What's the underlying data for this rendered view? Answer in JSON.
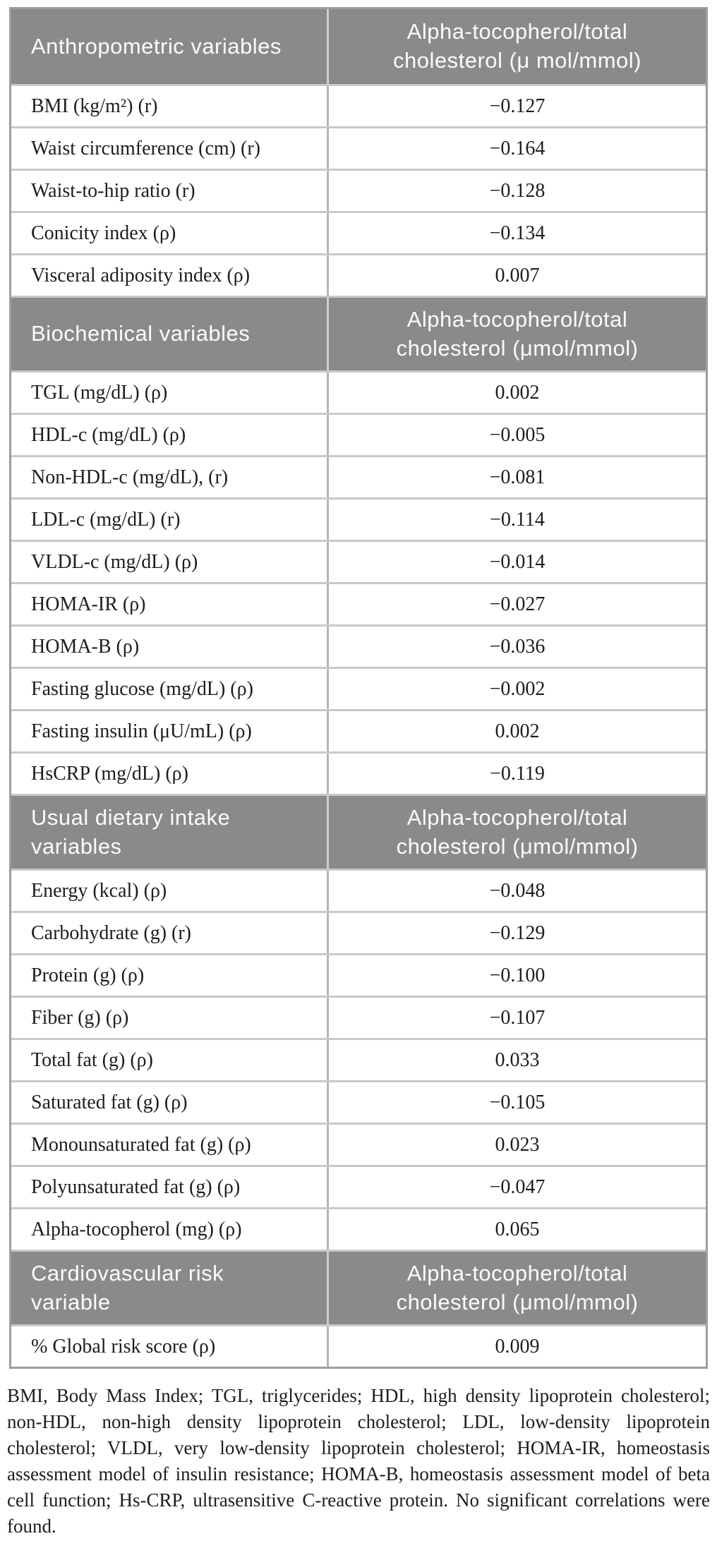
{
  "table": {
    "sections": [
      {
        "header": {
          "col1": "Anthropometric variables",
          "col2": "Alpha-tocopherol/total cholesterol (μ mol/mmol)"
        },
        "rows": [
          {
            "label": "BMI (kg/m²) (r)",
            "value": "−0.127"
          },
          {
            "label": "Waist circumference (cm) (r)",
            "value": "−0.164"
          },
          {
            "label": "Waist-to-hip ratio (r)",
            "value": "−0.128"
          },
          {
            "label": "Conicity index (ρ)",
            "value": "−0.134"
          },
          {
            "label": "Visceral adiposity index (ρ)",
            "value": "0.007"
          }
        ]
      },
      {
        "header": {
          "col1": "Biochemical variables",
          "col2": "Alpha-tocopherol/total cholesterol (μmol/mmol)"
        },
        "rows": [
          {
            "label": "TGL (mg/dL) (ρ)",
            "value": "0.002"
          },
          {
            "label": "HDL-c (mg/dL) (ρ)",
            "value": "−0.005"
          },
          {
            "label": "Non-HDL-c (mg/dL), (r)",
            "value": "−0.081"
          },
          {
            "label": "LDL-c (mg/dL) (r)",
            "value": "−0.114"
          },
          {
            "label": "VLDL-c (mg/dL) (ρ)",
            "value": "−0.014"
          },
          {
            "label": "HOMA-IR (ρ)",
            "value": "−0.027"
          },
          {
            "label": "HOMA-B (ρ)",
            "value": "−0.036"
          },
          {
            "label": "Fasting glucose (mg/dL) (ρ)",
            "value": "−0.002"
          },
          {
            "label": "Fasting insulin (μU/mL) (ρ)",
            "value": "0.002"
          },
          {
            "label": "HsCRP (mg/dL) (ρ)",
            "value": "−0.119"
          }
        ]
      },
      {
        "header": {
          "col1": "Usual dietary intake variables",
          "col2": "Alpha-tocopherol/total cholesterol (μmol/mmol)"
        },
        "rows": [
          {
            "label": "Energy (kcal) (ρ)",
            "value": "−0.048"
          },
          {
            "label": "Carbohydrate (g) (r)",
            "value": "−0.129"
          },
          {
            "label": "Protein (g) (ρ)",
            "value": "−0.100"
          },
          {
            "label": "Fiber (g) (ρ)",
            "value": "−0.107"
          },
          {
            "label": "Total fat (g) (ρ)",
            "value": "0.033"
          },
          {
            "label": "Saturated fat (g) (ρ)",
            "value": "−0.105"
          },
          {
            "label": "Monounsaturated fat (g) (ρ)",
            "value": "0.023"
          },
          {
            "label": "Polyunsaturated fat (g) (ρ)",
            "value": "−0.047"
          },
          {
            "label": "Alpha-tocopherol (mg) (ρ)",
            "value": "0.065"
          }
        ]
      },
      {
        "header": {
          "col1": "Cardiovascular risk variable",
          "col2": "Alpha-tocopherol/total cholesterol (μmol/mmol)"
        },
        "rows": [
          {
            "label": "% Global risk score (ρ)",
            "value": "0.009"
          }
        ]
      }
    ]
  },
  "footnote": "BMI, Body Mass Index; TGL, triglycerides; HDL, high density lipoprotein cholesterol; non-HDL, non-high density lipoprotein cholesterol; LDL, low-density lipoprotein cholesterol; VLDL, very low-density lipoprotein cholesterol; HOMA-IR, homeostasis assessment model of insulin resistance; HOMA-B, homeostasis assessment model of beta cell function; Hs-CRP, ultrasensitive C-reactive protein. No significant correlations were found.",
  "colors": {
    "section_header_bg": "#8a8a8a",
    "header_text": "#fbfbfb",
    "body_text": "#1d1d1d",
    "outer_border": "#9e9e9e",
    "row_separator": "#c9c9c9",
    "column_divider": "#b5b5b5"
  }
}
